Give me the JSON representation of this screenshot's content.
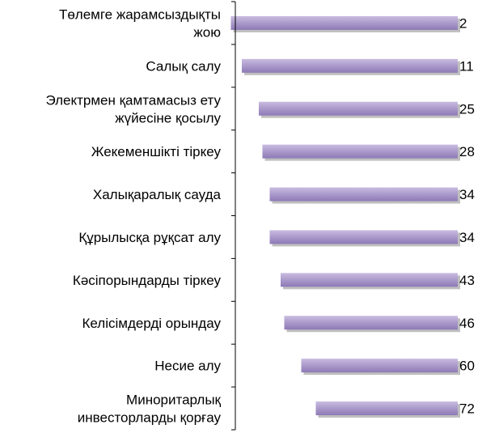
{
  "chart_data": {
    "type": "bar",
    "orientation": "horizontal",
    "categories": [
      [
        "Төлемге жарамсыздықты",
        "жою"
      ],
      [
        "Салық салу"
      ],
      [
        "Электрмен қамтамасыз ету",
        "жүйесіне қосылу"
      ],
      [
        "Жекеменшікті тіркеу"
      ],
      [
        "Халықаралық сауда"
      ],
      [
        "Құрылысқа рұқсат алу"
      ],
      [
        "Кәсіпорындарды тіркеу"
      ],
      [
        "Келісімдерді орындау"
      ],
      [
        "Несие алу"
      ],
      [
        "Миноритарлық",
        "инвесторларды қорғау"
      ]
    ],
    "values": [
      2,
      11,
      25,
      28,
      34,
      34,
      43,
      46,
      60,
      72
    ],
    "value_labels": [
      "2",
      "11",
      "25",
      "28",
      "34",
      "34",
      "43",
      "46",
      "60",
      "72"
    ],
    "bar_direction": "bars extend leftward from the right edge; length = 189 - value (rank-style display)",
    "title": "",
    "xlabel": "",
    "ylabel": "",
    "grid": false,
    "legend": "none",
    "colors": {
      "bar_fill_top": "#c9bce0",
      "bar_fill_mid": "#a796c8",
      "bar_fill_bottom": "#8e7ab6",
      "bar_shadow": "#8a8a8a",
      "axis": "#000000",
      "text": "#000000"
    }
  }
}
